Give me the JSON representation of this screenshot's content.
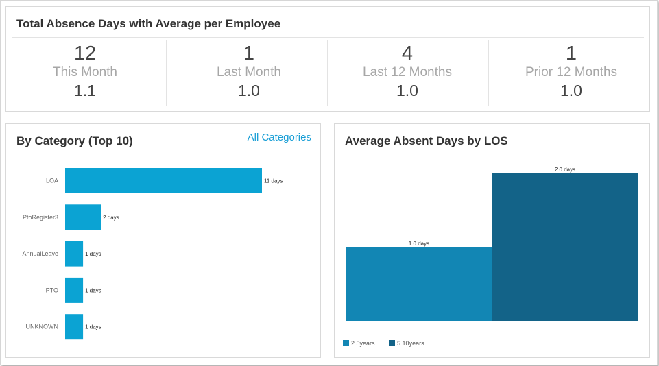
{
  "summary": {
    "title": "Total Absence Days with Average per Employee",
    "metrics": [
      {
        "value": "12",
        "label": "This Month",
        "avg": "1.1"
      },
      {
        "value": "1",
        "label": "Last Month",
        "avg": "1.0"
      },
      {
        "value": "4",
        "label": "Last 12 Months",
        "avg": "1.0"
      },
      {
        "value": "1",
        "label": "Prior 12 Months",
        "avg": "1.0"
      }
    ]
  },
  "category_panel": {
    "title": "By Category (Top 10)",
    "link": "All Categories"
  },
  "los_panel": {
    "title": "Average Absent Days by LOS"
  },
  "colors": {
    "bar": "#0ba3d3",
    "los_series_1": "#1286b4",
    "los_series_2": "#136388"
  },
  "chart_data": [
    {
      "type": "bar",
      "orientation": "horizontal",
      "categories": [
        "LOA",
        "PtoRegister3",
        "AnnualLeave",
        "PTO",
        "UNKNOWN"
      ],
      "values": [
        11,
        2,
        1,
        1,
        1
      ],
      "data_labels": [
        "11 days",
        "2 days",
        "1 days",
        "1 days",
        "1 days"
      ],
      "xlim": [
        0,
        11
      ]
    },
    {
      "type": "bar",
      "categories": [
        "2 5years",
        "5 10years"
      ],
      "series": [
        {
          "name": "2 5years",
          "values": [
            1.0,
            null
          ]
        },
        {
          "name": "5 10years",
          "values": [
            null,
            2.0
          ]
        }
      ],
      "data_labels": [
        "1.0 days",
        "2.0 days"
      ],
      "ylim": [
        0,
        2
      ],
      "legend": "bottom-left"
    }
  ]
}
